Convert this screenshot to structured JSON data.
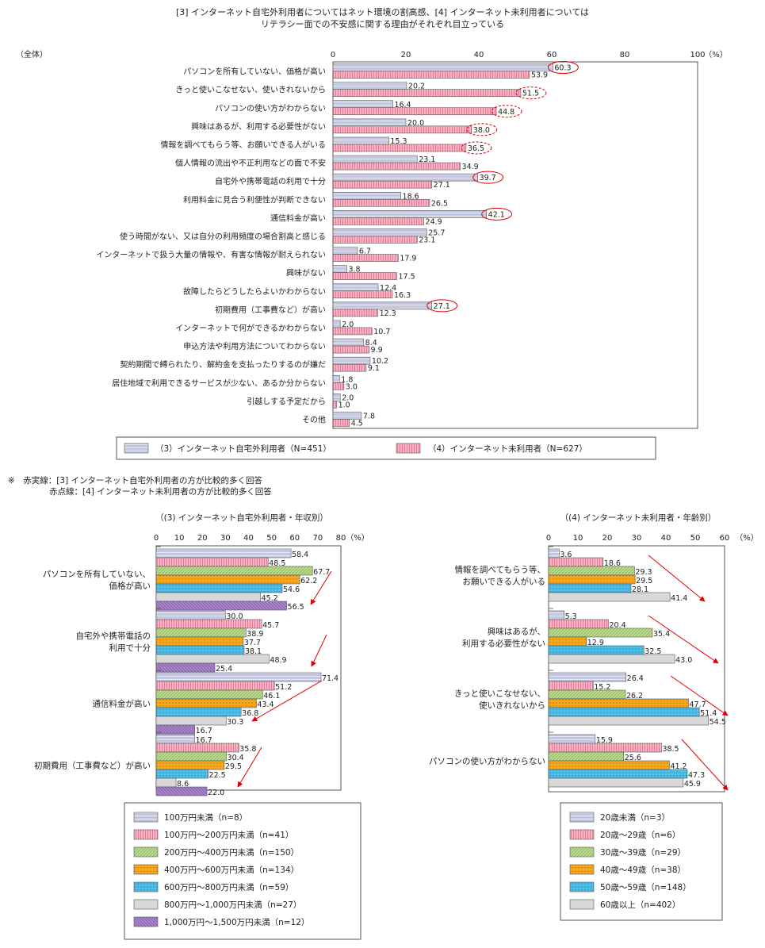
{
  "title_line1": "[3] インターネット自宅外利用者についてはネット環境の割高感、[4] インターネット未利用者については",
  "title_line2": "リテラシー面での不安感に関する理由がそれぞれ目立っている",
  "note_line1": "※　赤実線：[3] インターネット自宅外利用者の方が比較的多く回答",
  "note_line2": "赤点線：[4] インターネット未利用者の方が比較的多く回答",
  "colors": {
    "blue": "#c3c7e6",
    "pink": "#f8b4c4",
    "green": "#b8d98a",
    "orange": "#f6a91e",
    "cyan": "#54c4ec",
    "gray": "#d8d8d8",
    "purple": "#a782c6",
    "red": "#e00000"
  },
  "chart_data": [
    {
      "type": "bar",
      "orientation": "horizontal",
      "corner_label": "（全体）",
      "unit_label": "（%）",
      "xlim": [
        0,
        100
      ],
      "ticks": [
        "0",
        "20",
        "40",
        "60",
        "80",
        "100"
      ],
      "categories": [
        "パソコンを所有していない、価格が高い",
        "きっと使いこなせない、使いきれないから",
        "パソコンの使い方がわからない",
        "興味はあるが、利用する必要性がない",
        "情報を調べてもらう等、お願いできる人がいる",
        "個人情報の流出や不正利用などの面で不安",
        "自宅外や携帯電話の利用で十分",
        "利用料金に見合う利便性が判断できない",
        "通信料金が高い",
        "使う時間がない、又は自分の利用頻度の場合割高と感じる",
        "インターネットで扱う大量の情報や、有害な情報が耐えられない",
        "興味がない",
        "故障したらどうしたらよいかわからない",
        "初期費用（工事費など）が高い",
        "インターネットで何ができるかわからない",
        "申込方法や利用方法についてわからない",
        "契約期間で縛られたり、解約金を支払ったりするのが嫌だ",
        "居住地域で利用できるサービスが少ない、あるか分からない",
        "引越しする予定だから",
        "その他"
      ],
      "series": [
        {
          "name": "（3）インターネット自宅外利用者（N=451）",
          "values": [
            60.3,
            20.2,
            16.4,
            20.0,
            15.3,
            23.1,
            39.7,
            18.6,
            42.1,
            25.7,
            6.7,
            3.8,
            12.4,
            27.1,
            2.0,
            8.4,
            10.2,
            1.8,
            2.0,
            7.8
          ]
        },
        {
          "name": "（4）インターネット未利用者（N=627）",
          "values": [
            53.9,
            51.5,
            44.8,
            38.0,
            36.5,
            34.9,
            27.1,
            26.5,
            24.9,
            23.1,
            17.9,
            17.5,
            16.3,
            12.3,
            10.7,
            9.9,
            9.1,
            3.0,
            1.0,
            4.5
          ]
        }
      ],
      "highlights": [
        {
          "cat": 0,
          "s": 0,
          "style": "solid"
        },
        {
          "cat": 1,
          "s": 1,
          "style": "dashed"
        },
        {
          "cat": 2,
          "s": 1,
          "style": "dashed"
        },
        {
          "cat": 3,
          "s": 1,
          "style": "dashed"
        },
        {
          "cat": 4,
          "s": 1,
          "style": "dashed"
        },
        {
          "cat": 6,
          "s": 0,
          "style": "solid"
        },
        {
          "cat": 8,
          "s": 0,
          "style": "solid"
        },
        {
          "cat": 13,
          "s": 0,
          "style": "solid"
        }
      ]
    },
    {
      "type": "bar",
      "orientation": "horizontal",
      "title": "（(3) インターネット自宅外利用者・年収別）",
      "unit_label": "（%）",
      "xlim": [
        0,
        80
      ],
      "ticks": [
        "0",
        "10",
        "20",
        "30",
        "40",
        "50",
        "60",
        "70",
        "80"
      ],
      "categories": [
        "パソコンを所有していない、\n価格が高い",
        "自宅外や携帯電話の\n利用で十分",
        "通信料金が高い",
        "初期費用（工事費など）が高い"
      ],
      "series": [
        {
          "name": "100万円未満（n=8）",
          "values": [
            58.4,
            30.0,
            71.4,
            16.7
          ]
        },
        {
          "name": "100万円～200万円未満（n=41）",
          "values": [
            48.5,
            45.7,
            51.2,
            35.8
          ]
        },
        {
          "name": "200万円～400万円未満（n=150）",
          "values": [
            67.7,
            38.9,
            46.1,
            30.4
          ]
        },
        {
          "name": "400万円～600万円未満（n=134）",
          "values": [
            62.2,
            37.7,
            43.4,
            29.5
          ]
        },
        {
          "name": "600万円～800万円未満（n=59）",
          "values": [
            54.6,
            38.1,
            36.8,
            22.5
          ]
        },
        {
          "name": "800万円～1,000万円未満（n=27）",
          "values": [
            45.2,
            48.9,
            30.3,
            8.6
          ]
        },
        {
          "name": "1,000万円～1,500万円未満（n=12）",
          "values": [
            56.5,
            25.4,
            16.7,
            22.0
          ]
        }
      ]
    },
    {
      "type": "bar",
      "orientation": "horizontal",
      "title": "（(4) インターネット未利用者・年齢別）",
      "unit_label": "（%）",
      "xlim": [
        0,
        60
      ],
      "ticks": [
        "0",
        "10",
        "20",
        "30",
        "40",
        "50",
        "60"
      ],
      "categories": [
        "情報を調べてもらう等、\nお願いできる人がいる",
        "興味はあるが、\n利用する必要性がない",
        "きっと使いこなせない、\n使いきれないから",
        "パソコンの使い方がわからない"
      ],
      "series": [
        {
          "name": "20歳未満（n=3）",
          "values": [
            3.6,
            5.3,
            26.4,
            15.9
          ]
        },
        {
          "name": "20歳～29歳（n=6）",
          "values": [
            18.6,
            20.4,
            15.2,
            38.5
          ]
        },
        {
          "name": "30歳～39歳（n=29）",
          "values": [
            29.3,
            35.4,
            26.2,
            25.6
          ]
        },
        {
          "name": "40歳～49歳（n=38）",
          "values": [
            29.5,
            12.9,
            47.7,
            41.2
          ]
        },
        {
          "name": "50歳～59歳（n=148）",
          "values": [
            28.1,
            32.5,
            51.4,
            47.3
          ]
        },
        {
          "name": "60歳以上（n=402）",
          "values": [
            41.4,
            43.0,
            54.5,
            45.9
          ]
        }
      ]
    }
  ]
}
